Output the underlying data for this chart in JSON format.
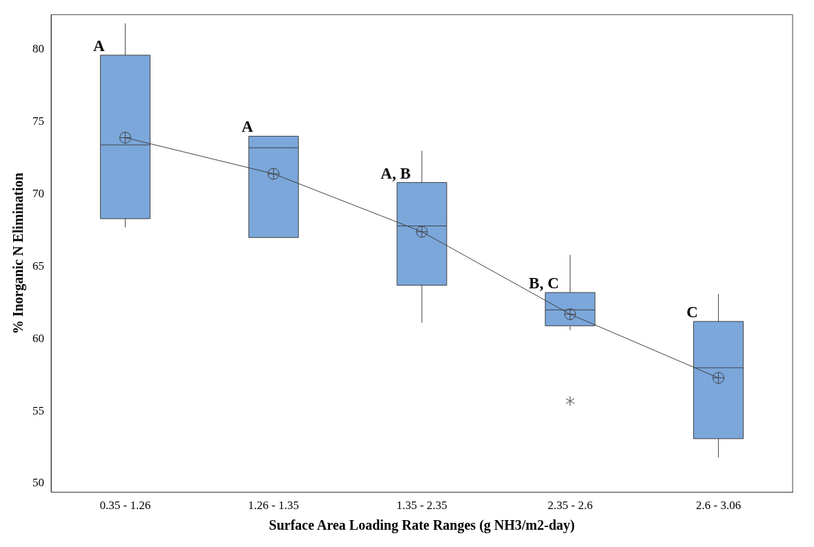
{
  "chart_data": {
    "type": "box",
    "xlabel": "Surface Area Loading Rate Ranges (g NH3/m2-day)",
    "ylabel": "% Inorganic N Elimination",
    "categories": [
      "0.35 - 1.26",
      "1.26 - 1.35",
      "1.35 - 2.35",
      "2.35 - 2.6",
      "2.6 - 3.06"
    ],
    "ylim": [
      49.4,
      82.4
    ],
    "yticks": [
      50,
      55,
      60,
      65,
      70,
      75,
      80
    ],
    "grid": false,
    "legend": false,
    "color": "#7ba7db",
    "boxes": [
      {
        "low": 67.7,
        "q1": 68.3,
        "median": 73.4,
        "q3": 79.6,
        "high": 81.8,
        "mean": 73.9
      },
      {
        "low": 67.0,
        "q1": 67.0,
        "median": 73.2,
        "q3": 74.0,
        "high": 74.0,
        "mean": 71.4
      },
      {
        "low": 61.1,
        "q1": 63.7,
        "median": 67.8,
        "q3": 70.8,
        "high": 73.0,
        "mean": 67.4
      },
      {
        "low": 60.6,
        "q1": 60.9,
        "median": 62.0,
        "q3": 63.2,
        "high": 65.8,
        "mean": 61.7,
        "outliers": [
          55.7
        ]
      },
      {
        "low": 51.8,
        "q1": 53.1,
        "median": 58.0,
        "q3": 61.2,
        "high": 63.1,
        "mean": 57.3
      }
    ],
    "series": [
      {
        "type": "line",
        "color": "#404040",
        "marker": "none",
        "line_style": "solid",
        "values": [
          73.9,
          71.4,
          67.4,
          61.7,
          57.3
        ]
      }
    ],
    "annotations": [
      {
        "text": "A",
        "x": "0.35 - 1.26",
        "y": 79.6
      },
      {
        "text": "A",
        "x": "1.26 - 1.35",
        "y": 74.0
      },
      {
        "text": "A, B",
        "x": "1.35 - 2.35",
        "y": 70.8
      },
      {
        "text": "B, C",
        "x": "2.35 - 2.6",
        "y": 63.2
      },
      {
        "text": "C",
        "x": "2.6 - 3.06",
        "y": 61.2
      }
    ]
  }
}
